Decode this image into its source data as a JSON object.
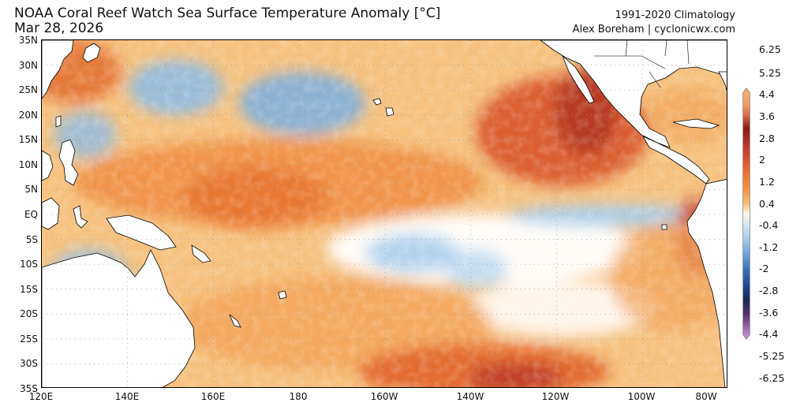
{
  "header": {
    "title": "NOAA Coral Reef Watch Sea Surface Temperature Anomaly [°C]",
    "date": "Mar 28, 2026",
    "climatology": "1991-2020 Climatology",
    "credit": "Alex Boreham | cyclonicwx.com"
  },
  "map": {
    "lat_labels": [
      "35N",
      "30N",
      "25N",
      "20N",
      "15N",
      "10N",
      "5N",
      "EQ",
      "5S",
      "10S",
      "15S",
      "20S",
      "25S",
      "30S",
      "35S"
    ],
    "lon_labels": [
      "120E",
      "140E",
      "160E",
      "180",
      "160W",
      "140W",
      "120W",
      "100W",
      "80W"
    ],
    "land_color": "#ffffff",
    "ocean_base_color": "#f6c17e"
  },
  "colorbar": {
    "labels": [
      "6.25",
      "5.25",
      "4.4",
      "3.6",
      "2.8",
      "2",
      "1.2",
      "0.4",
      "-0.4",
      "-1.2",
      "-2",
      "-2.8",
      "-3.6",
      "-4.4",
      "-5.25",
      "-6.25"
    ],
    "colors": [
      "#f4a460",
      "#e36b2c",
      "#8b0000",
      "#c0392b",
      "#e8602a",
      "#f08a3c",
      "#f5b46c",
      "#fde4b0",
      "#cfe3f3",
      "#92c1e6",
      "#4f8fcf",
      "#2b5aa6",
      "#1b2f6b",
      "#3a1f4d",
      "#7a3f8f",
      "#c07ad0"
    ]
  }
}
